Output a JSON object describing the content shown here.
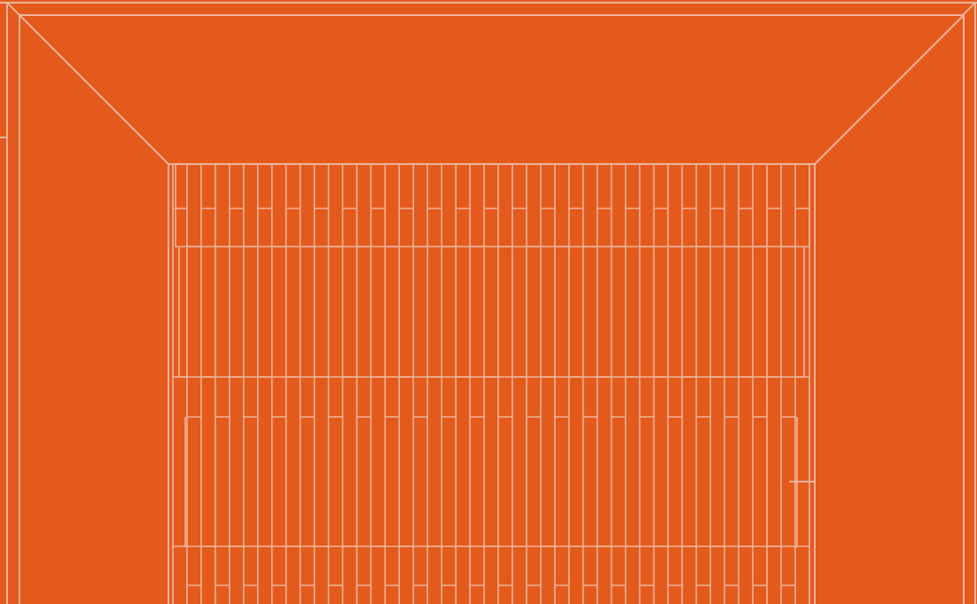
{
  "scene": {
    "background_color": "#e45a1c",
    "line_color": "#f0b39a",
    "subject": "architectural-line-drawing",
    "pleat_count": 46
  }
}
